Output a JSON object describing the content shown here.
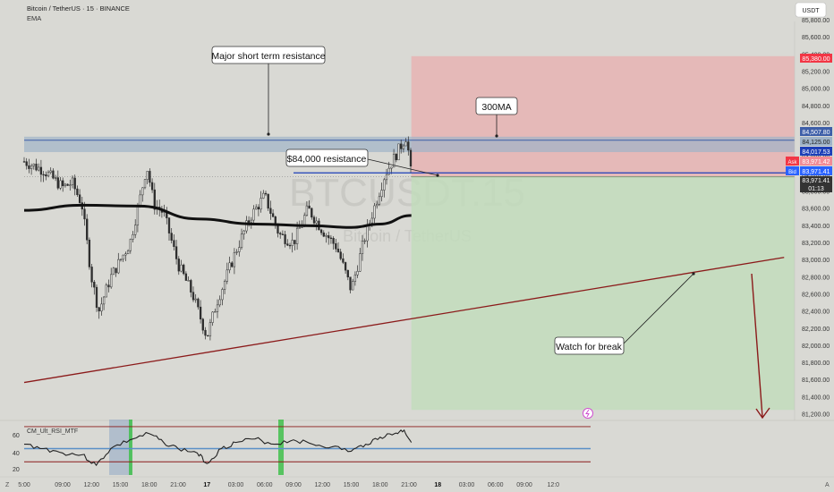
{
  "header": {
    "title": "Bitcoin / TetherUS · 15 · BINANCE",
    "indicator": "EMA",
    "currency_button": "USDT"
  },
  "watermark": {
    "symbol": "BTCUSDT.15",
    "name": "Bitcoin / TetherUS"
  },
  "annotations": {
    "resistance_label": "Major short term resistance",
    "ma_label": "300MA",
    "level_label": "$84,000 resistance",
    "break_label": "Watch for break"
  },
  "price_scale": {
    "ticks": [
      "85,800.00",
      "85,600.00",
      "85,400.00",
      "85,200.00",
      "85,000.00",
      "84,800.00",
      "84,600.00",
      "84,400.00",
      "84,200.00",
      "84,000.00",
      "83,800.00",
      "83,600.00",
      "83,400.00",
      "83,200.00",
      "83,000.00",
      "82,800.00",
      "82,600.00",
      "82,400.00",
      "82,200.00",
      "82,000.00",
      "81,800.00",
      "81,600.00",
      "81,400.00",
      "81,200.00"
    ],
    "tag_stop": "85,380.00",
    "tag_1": "84,507.80",
    "tag_2": "84,125.00",
    "tag_3": "84,017.53",
    "ask_label": "Ask",
    "ask_value": "83,971.42",
    "bid_label": "Bid",
    "bid_value": "83,971.41",
    "last_value": "83,971.41",
    "countdown": "01:13"
  },
  "time_axis": {
    "labels": [
      "5:00",
      "09:00",
      "12:00",
      "15:00",
      "18:00",
      "21:00",
      "17",
      "03:00",
      "06:00",
      "09:00",
      "12:00",
      "15:00",
      "18:00",
      "21:00",
      "18",
      "03:00",
      "06:00",
      "09:00",
      "12:0"
    ],
    "left_icon": "Z",
    "right_icon": "A"
  },
  "rsi": {
    "name": "CM_Ult_RSI_MTF",
    "ticks": [
      "60",
      "40",
      "20"
    ]
  },
  "colors": {
    "background": "#d9d9d4",
    "resistance_zone": "#9fb3c8",
    "stop_zone": "#e6b3b3",
    "target_zone": "#c2dcbc",
    "trendline": "#8b1a1a",
    "ma": "#111111",
    "candle": "#2d2d2d",
    "bid_tag": "#2962ff",
    "ask_tag": "#f23645",
    "alert": "#d04fd0"
  },
  "chart_data": {
    "type": "line",
    "symbol": "BTCUSDT",
    "interval": "15",
    "y_axis_range": [
      81200,
      85900
    ],
    "x_axis_range": [
      "16 05:00",
      "19 12:00"
    ],
    "price_path": [
      {
        "time": "16 05:00",
        "price": 84150
      },
      {
        "time": "16 07:00",
        "price": 84050
      },
      {
        "time": "16 09:00",
        "price": 83850
      },
      {
        "time": "16 10:00",
        "price": 83900
      },
      {
        "time": "16 11:00",
        "price": 83650
      },
      {
        "time": "16 12:00",
        "price": 82800
      },
      {
        "time": "16 12:45",
        "price": 82400
      },
      {
        "time": "16 14:00",
        "price": 82800
      },
      {
        "time": "16 15:00",
        "price": 83000
      },
      {
        "time": "16 16:00",
        "price": 83200
      },
      {
        "time": "16 17:00",
        "price": 83700
      },
      {
        "time": "16 17:45",
        "price": 84100
      },
      {
        "time": "16 18:30",
        "price": 83650
      },
      {
        "time": "16 19:30",
        "price": 83550
      },
      {
        "time": "16 21:00",
        "price": 82950
      },
      {
        "time": "16 22:30",
        "price": 82600
      },
      {
        "time": "17 00:00",
        "price": 82100
      },
      {
        "time": "17 01:00",
        "price": 82500
      },
      {
        "time": "17 02:00",
        "price": 82800
      },
      {
        "time": "17 03:00",
        "price": 83100
      },
      {
        "time": "17 04:30",
        "price": 83500
      },
      {
        "time": "17 06:00",
        "price": 83750
      },
      {
        "time": "17 07:30",
        "price": 83300
      },
      {
        "time": "17 09:00",
        "price": 83200
      },
      {
        "time": "17 10:30",
        "price": 83600
      },
      {
        "time": "17 12:00",
        "price": 83350
      },
      {
        "time": "17 13:30",
        "price": 83150
      },
      {
        "time": "17 15:00",
        "price": 82650
      },
      {
        "time": "17 16:30",
        "price": 83300
      },
      {
        "time": "17 17:30",
        "price": 83650
      },
      {
        "time": "17 18:30",
        "price": 84000
      },
      {
        "time": "17 20:00",
        "price": 84300
      },
      {
        "time": "17 20:45",
        "price": 84450
      },
      {
        "time": "17 21:15",
        "price": 83971.41
      }
    ],
    "ma300": [
      {
        "time": "16 05:00",
        "price": 83580
      },
      {
        "time": "16 11:00",
        "price": 83640
      },
      {
        "time": "16 17:00",
        "price": 83630
      },
      {
        "time": "16 23:00",
        "price": 83480
      },
      {
        "time": "17 05:00",
        "price": 83420
      },
      {
        "time": "17 11:00",
        "price": 83400
      },
      {
        "time": "17 15:00",
        "price": 83380
      },
      {
        "time": "17 18:00",
        "price": 83420
      },
      {
        "time": "17 21:15",
        "price": 83520
      }
    ],
    "resistance_zone": [
      84440,
      84260
    ],
    "resistance_84000": {
      "price": 84017.53,
      "from": "17 09:00",
      "to": "17 20:30"
    },
    "trendline": [
      {
        "time": "16 05:00",
        "price": 81570
      },
      {
        "time": "19 12:00",
        "price": 83030
      }
    ],
    "position": {
      "entry": 83971.41,
      "stop": 85380,
      "target": 81250
    },
    "rsi": {
      "ylim": [
        15,
        75
      ],
      "upper_band": 70,
      "lower_band": 30,
      "mid_line": 45,
      "values": [
        {
          "time": "16 05:00",
          "value": 50
        },
        {
          "time": "16 07:00",
          "value": 45
        },
        {
          "time": "16 09:00",
          "value": 40
        },
        {
          "time": "16 11:00",
          "value": 38
        },
        {
          "time": "16 12:30",
          "value": 26
        },
        {
          "time": "16 14:00",
          "value": 45
        },
        {
          "time": "16 16:00",
          "value": 55
        },
        {
          "time": "16 18:00",
          "value": 62
        },
        {
          "time": "16 19:30",
          "value": 52
        },
        {
          "time": "16 21:00",
          "value": 45
        },
        {
          "time": "16 23:00",
          "value": 40
        },
        {
          "time": "17 00:00",
          "value": 28
        },
        {
          "time": "17 01:30",
          "value": 45
        },
        {
          "time": "17 03:00",
          "value": 52
        },
        {
          "time": "17 05:00",
          "value": 56
        },
        {
          "time": "17 07:00",
          "value": 50
        },
        {
          "time": "17 09:00",
          "value": 55
        },
        {
          "time": "17 11:00",
          "value": 50
        },
        {
          "time": "17 13:00",
          "value": 47
        },
        {
          "time": "17 15:00",
          "value": 42
        },
        {
          "time": "17 16:30",
          "value": 50
        },
        {
          "time": "17 18:00",
          "value": 58
        },
        {
          "time": "17 19:30",
          "value": 62
        },
        {
          "time": "17 20:30",
          "value": 66
        },
        {
          "time": "17 21:15",
          "value": 52
        }
      ]
    }
  }
}
